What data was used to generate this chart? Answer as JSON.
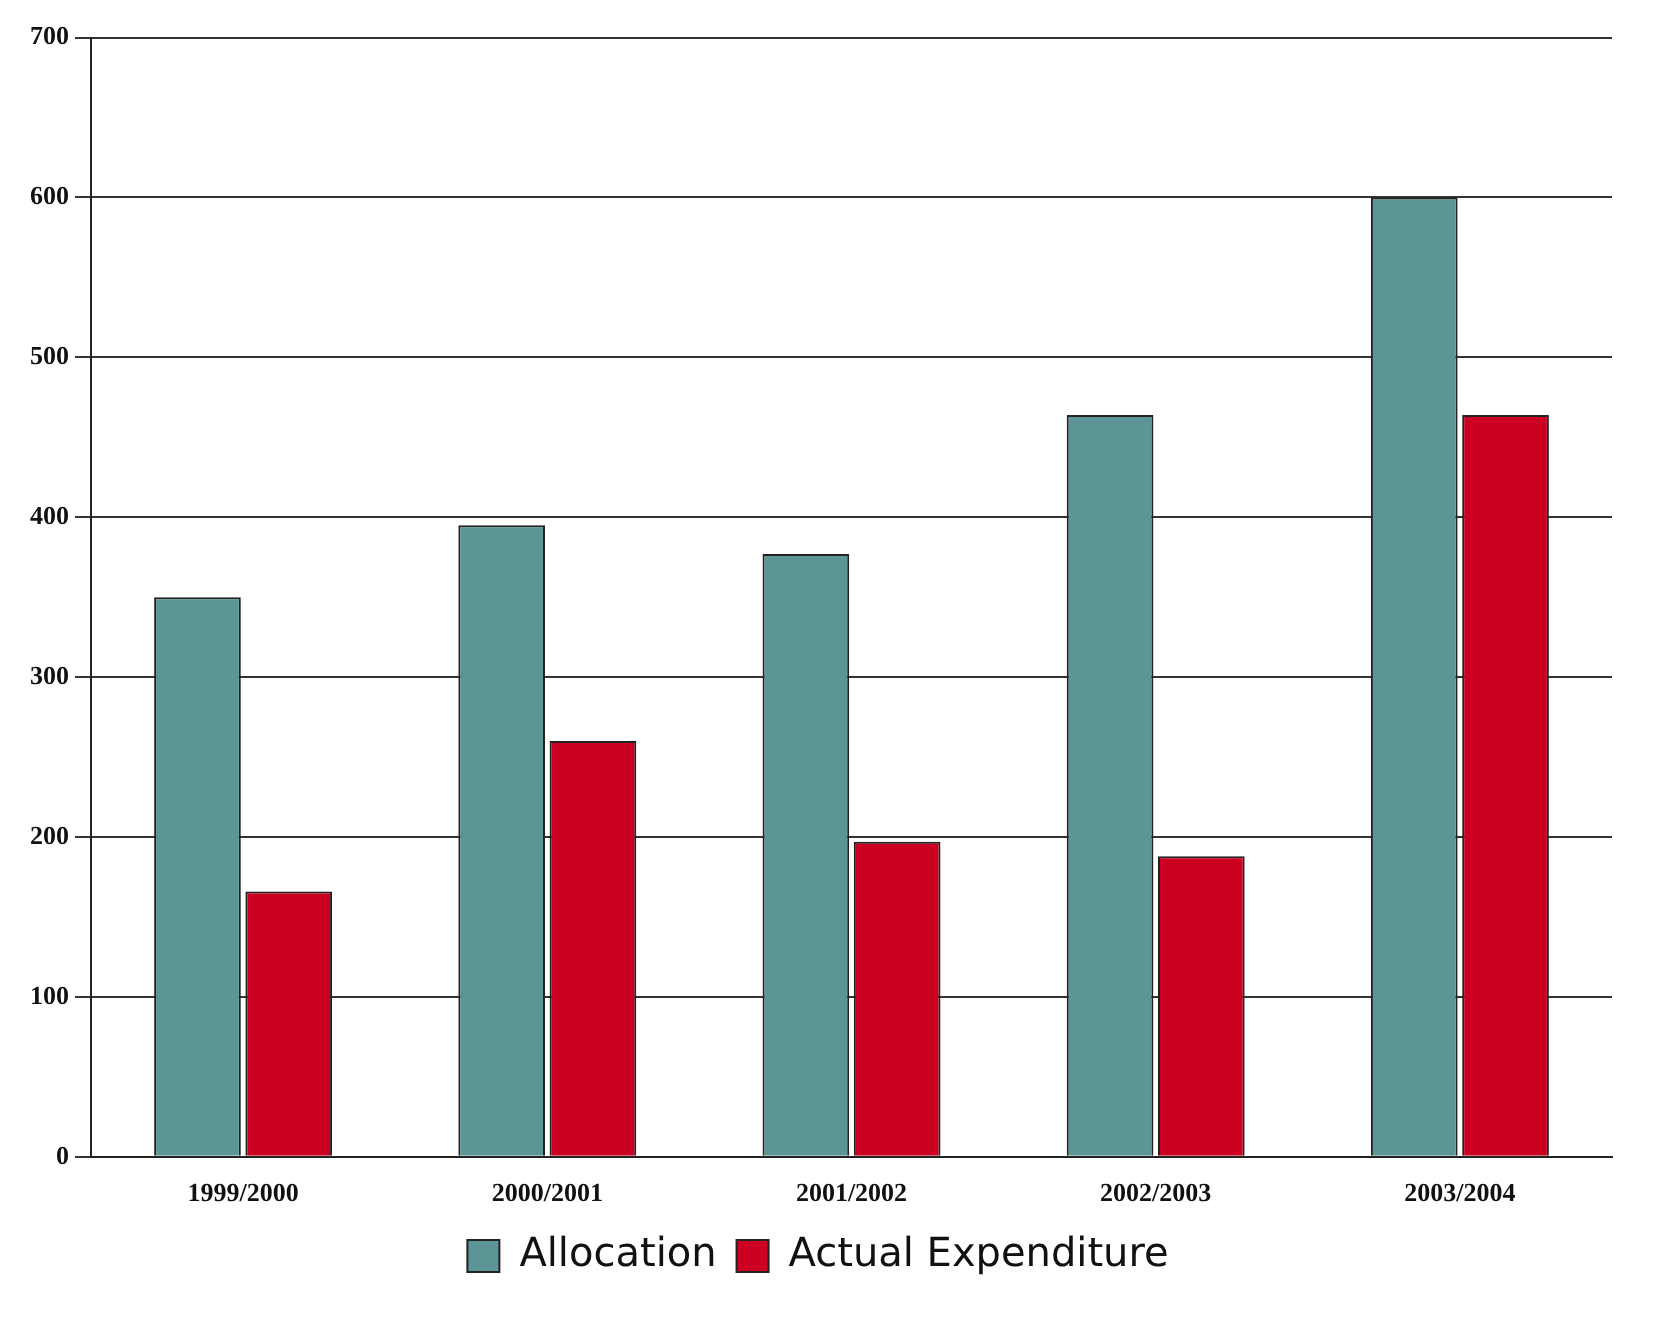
{
  "chart_data": {
    "type": "bar",
    "categories": [
      "1999/2000",
      "2000/2001",
      "2001/2002",
      "2002/2003",
      "2003/2004"
    ],
    "series": [
      {
        "name": "Allocation",
        "color": "#5b9595",
        "values": [
          350,
          395,
          377,
          464,
          600
        ]
      },
      {
        "name": "Actual Expenditure",
        "color": "#cc0020",
        "values": [
          166,
          260,
          197,
          188,
          464
        ]
      }
    ],
    "ylim": [
      0,
      700
    ],
    "yticks": [
      0,
      100,
      200,
      300,
      400,
      500,
      600,
      700
    ],
    "grid": "y",
    "legend": "bottom"
  }
}
